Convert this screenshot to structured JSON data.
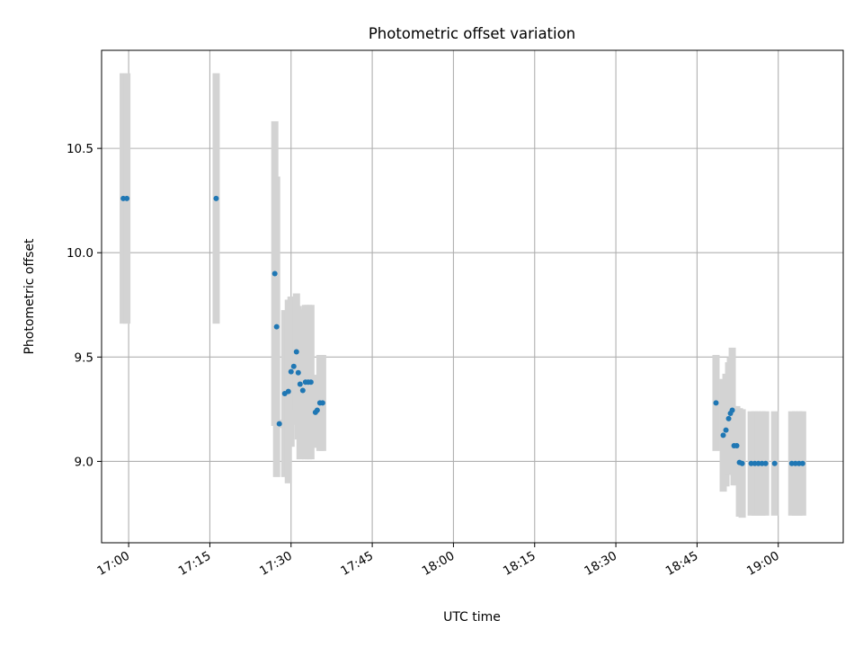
{
  "chart_data": {
    "type": "scatter",
    "title": "Photometric offset variation",
    "xlabel": "UTC time",
    "ylabel": "Photometric offset",
    "grid": true,
    "xlim": [
      "16:55",
      "19:12"
    ],
    "ylim": [
      8.61,
      10.97
    ],
    "x_ticks": [
      "17:00",
      "17:15",
      "17:30",
      "17:45",
      "18:00",
      "18:15",
      "18:30",
      "18:45",
      "19:00"
    ],
    "y_ticks": [
      "9.0",
      "9.5",
      "10.0",
      "10.5"
    ],
    "colors": {
      "points": "#1f77b4",
      "error_bars": "#d3d3d3",
      "grid": "#b0b0b0"
    },
    "series": [
      {
        "points": [
          {
            "x": "16:59:00",
            "y": 10.26,
            "err": 0.6
          },
          {
            "x": "16:59:40",
            "y": 10.26,
            "err": 0.6
          },
          {
            "x": "17:16:10",
            "y": 10.26,
            "err": 0.6
          },
          {
            "x": "17:27:00",
            "y": 9.9,
            "err": 0.73
          },
          {
            "x": "17:27:20",
            "y": 9.645,
            "err": 0.72
          },
          {
            "x": "17:27:50",
            "y": 9.18,
            "err": 0.02
          },
          {
            "x": "17:28:50",
            "y": 9.325,
            "err": 0.4
          },
          {
            "x": "17:29:30",
            "y": 9.335,
            "err": 0.44
          },
          {
            "x": "17:30:00",
            "y": 9.43,
            "err": 0.36
          },
          {
            "x": "17:30:30",
            "y": 9.455,
            "err": 0.28
          },
          {
            "x": "17:31:00",
            "y": 9.525,
            "err": 0.28
          },
          {
            "x": "17:31:20",
            "y": 9.425,
            "err": 0.32
          },
          {
            "x": "17:31:40",
            "y": 9.37,
            "err": 0.36
          },
          {
            "x": "17:32:10",
            "y": 9.34,
            "err": 0.32
          },
          {
            "x": "17:32:40",
            "y": 9.38,
            "err": 0.37
          },
          {
            "x": "17:33:10",
            "y": 9.38,
            "err": 0.37
          },
          {
            "x": "17:33:40",
            "y": 9.38,
            "err": 0.37
          },
          {
            "x": "17:34:30",
            "y": 9.235,
            "err": 0.17
          },
          {
            "x": "17:34:50",
            "y": 9.245,
            "err": 0.17
          },
          {
            "x": "17:35:20",
            "y": 9.28,
            "err": 0.23
          },
          {
            "x": "17:35:50",
            "y": 9.28,
            "err": 0.23
          },
          {
            "x": "18:48:30",
            "y": 9.28,
            "err": 0.23
          },
          {
            "x": "18:49:50",
            "y": 9.125,
            "err": 0.27
          },
          {
            "x": "18:50:20",
            "y": 9.15,
            "err": 0.27
          },
          {
            "x": "18:50:50",
            "y": 9.205,
            "err": 0.27
          },
          {
            "x": "18:51:10",
            "y": 9.23,
            "err": 0.27
          },
          {
            "x": "18:51:30",
            "y": 9.245,
            "err": 0.3
          },
          {
            "x": "18:51:50",
            "y": 9.075,
            "err": 0.19
          },
          {
            "x": "18:52:20",
            "y": 9.075,
            "err": 0.19
          },
          {
            "x": "18:52:50",
            "y": 8.995,
            "err": 0.26
          },
          {
            "x": "18:53:20",
            "y": 8.99,
            "err": 0.26
          },
          {
            "x": "18:55:00",
            "y": 8.99,
            "err": 0.25
          },
          {
            "x": "18:55:40",
            "y": 8.99,
            "err": 0.25
          },
          {
            "x": "18:56:20",
            "y": 8.99,
            "err": 0.25
          },
          {
            "x": "18:57:00",
            "y": 8.99,
            "err": 0.25
          },
          {
            "x": "18:57:40",
            "y": 8.99,
            "err": 0.25
          },
          {
            "x": "18:59:20",
            "y": 8.99,
            "err": 0.25
          },
          {
            "x": "19:02:30",
            "y": 8.99,
            "err": 0.25
          },
          {
            "x": "19:03:10",
            "y": 8.99,
            "err": 0.25
          },
          {
            "x": "19:03:50",
            "y": 8.99,
            "err": 0.25
          },
          {
            "x": "19:04:30",
            "y": 8.99,
            "err": 0.25
          }
        ]
      }
    ]
  }
}
